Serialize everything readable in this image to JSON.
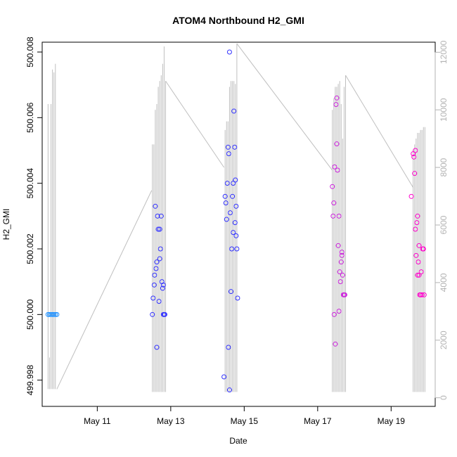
{
  "chart_data": {
    "type": "scatter",
    "title": "ATOM4 Northbound H2_GMI",
    "xlabel": "Date",
    "ylabel": "H2_GMI",
    "x_ticks": [
      "May 11",
      "May 13",
      "May 15",
      "May 17",
      "May 19"
    ],
    "x_tick_days": [
      11,
      13,
      15,
      17,
      19
    ],
    "xlim": [
      9.5,
      20.2
    ],
    "ylim": [
      499.9972,
      500.0083
    ],
    "y_ticks": [
      "499.998",
      "500.000",
      "500.002",
      "500.004",
      "500.006",
      "500.008"
    ],
    "y_tick_values": [
      499.998,
      500.0,
      500.002,
      500.004,
      500.006,
      500.008
    ],
    "y2lim": [
      -300,
      12350
    ],
    "y2_ticks": [
      "0",
      "2000",
      "4000",
      "6000",
      "8000",
      "10000",
      "12000"
    ],
    "y2_tick_values": [
      0,
      2000,
      4000,
      6000,
      8000,
      10000,
      12000
    ],
    "grid": false,
    "colors": {
      "points_early": "#1e90ff",
      "points_mid": "#3333ff",
      "points_late": "#cc22dd",
      "points_end": "#ff00cc",
      "secondary_line": "#bfbfbf",
      "secondary_axis": "#b3b3b3"
    },
    "series": [
      {
        "axis": "left",
        "marker": "open-circle",
        "points": [
          [
            9.66,
            500.0
          ],
          [
            9.7,
            500.0
          ],
          [
            9.74,
            500.0
          ],
          [
            9.78,
            500.0
          ],
          [
            9.82,
            500.0
          ],
          [
            9.86,
            500.0
          ],
          [
            9.9,
            500.0
          ],
          [
            12.5,
            500.0
          ],
          [
            12.52,
            500.0005
          ],
          [
            12.55,
            500.0009
          ],
          [
            12.56,
            500.0012
          ],
          [
            12.58,
            500.0033
          ],
          [
            12.6,
            500.0014
          ],
          [
            12.62,
            499.999
          ],
          [
            12.64,
            500.003
          ],
          [
            12.66,
            500.0026
          ],
          [
            12.68,
            500.0004
          ],
          [
            12.7,
            500.0026
          ],
          [
            12.72,
            500.002
          ],
          [
            12.74,
            500.003
          ],
          [
            12.76,
            500.001
          ],
          [
            12.78,
            500.0008
          ],
          [
            12.8,
            500.0
          ],
          [
            12.82,
            500.0
          ],
          [
            12.84,
            500.0
          ],
          [
            12.62,
            500.0016
          ],
          [
            12.7,
            500.0017
          ],
          [
            12.8,
            500.0009
          ],
          [
            14.45,
            499.9981
          ],
          [
            14.48,
            500.0036
          ],
          [
            14.5,
            500.0034
          ],
          [
            14.52,
            500.0029
          ],
          [
            14.54,
            500.004
          ],
          [
            14.56,
            500.0051
          ],
          [
            14.58,
            500.0049
          ],
          [
            14.6,
            500.008
          ],
          [
            14.62,
            500.0031
          ],
          [
            14.64,
            500.0007
          ],
          [
            14.66,
            500.002
          ],
          [
            14.68,
            500.0036
          ],
          [
            14.7,
            500.0025
          ],
          [
            14.72,
            500.0062
          ],
          [
            14.74,
            500.0051
          ],
          [
            14.76,
            500.0041
          ],
          [
            14.78,
            500.0033
          ],
          [
            14.8,
            500.002
          ],
          [
            14.82,
            500.0005
          ],
          [
            14.57,
            499.999
          ],
          [
            14.6,
            499.9977
          ],
          [
            14.7,
            500.004
          ],
          [
            14.75,
            500.0028
          ],
          [
            14.78,
            500.0024
          ],
          [
            17.4,
            500.0039
          ],
          [
            17.42,
            500.003
          ],
          [
            17.44,
            500.0034
          ],
          [
            17.46,
            500.0045
          ],
          [
            17.48,
            499.9991
          ],
          [
            17.5,
            500.0064
          ],
          [
            17.52,
            500.0052
          ],
          [
            17.54,
            500.0044
          ],
          [
            17.56,
            500.0021
          ],
          [
            17.58,
            500.003
          ],
          [
            17.6,
            500.0013
          ],
          [
            17.62,
            500.001
          ],
          [
            17.64,
            500.0016
          ],
          [
            17.66,
            500.0018
          ],
          [
            17.68,
            500.0012
          ],
          [
            17.7,
            500.0006
          ],
          [
            17.72,
            500.0006
          ],
          [
            17.74,
            500.0006
          ],
          [
            17.45,
            500.0
          ],
          [
            17.52,
            500.0066
          ],
          [
            17.58,
            500.0001
          ],
          [
            17.66,
            500.0019
          ],
          [
            19.55,
            500.0036
          ],
          [
            19.6,
            500.0049
          ],
          [
            19.62,
            500.0048
          ],
          [
            19.64,
            500.0043
          ],
          [
            19.66,
            500.0026
          ],
          [
            19.68,
            500.0018
          ],
          [
            19.7,
            500.0028
          ],
          [
            19.72,
            500.0012
          ],
          [
            19.74,
            500.0016
          ],
          [
            19.76,
            500.0012
          ],
          [
            19.78,
            500.0006
          ],
          [
            19.8,
            500.0006
          ],
          [
            19.82,
            500.0013
          ],
          [
            19.84,
            500.0006
          ],
          [
            19.86,
            500.002
          ],
          [
            19.88,
            500.002
          ],
          [
            19.9,
            500.0006
          ],
          [
            19.66,
            500.005
          ],
          [
            19.72,
            500.003
          ],
          [
            19.76,
            500.0021
          ]
        ]
      },
      {
        "axis": "right",
        "marker": "line",
        "segments": [
          {
            "spike_x": [
              9.66,
              9.7,
              9.74,
              9.78,
              9.82,
              9.86
            ],
            "spike_top": [
              10200,
              1400,
              10200,
              11400,
              11300,
              11600
            ],
            "baseline": 300
          },
          {
            "ramp": [
              [
                9.9,
                300
              ],
              [
                12.48,
                7200
              ]
            ]
          },
          {
            "spike_x": [
              12.5,
              12.54,
              12.58,
              12.62,
              12.66,
              12.7,
              12.74,
              12.78,
              12.82,
              12.86
            ],
            "spike_top": [
              8800,
              8800,
              10000,
              10200,
              10800,
              11000,
              11200,
              11600,
              12200,
              11000
            ],
            "baseline": 200
          },
          {
            "ramp": [
              [
                12.86,
                11000
              ],
              [
                14.45,
                8000
              ]
            ]
          },
          {
            "spike_x": [
              14.48,
              14.52,
              14.56,
              14.6,
              14.64,
              14.68,
              14.72,
              14.76,
              14.8
            ],
            "spike_top": [
              9300,
              9600,
              9600,
              10800,
              11000,
              11000,
              11000,
              10900,
              12300
            ],
            "baseline": 200
          },
          {
            "ramp": [
              [
                14.8,
                12300
              ],
              [
                17.4,
                7900
              ]
            ]
          },
          {
            "spike_x": [
              17.4,
              17.44,
              17.48,
              17.52,
              17.56,
              17.6,
              17.64,
              17.68,
              17.72,
              17.76
            ],
            "spike_top": [
              10000,
              10400,
              10800,
              10800,
              10900,
              11000,
              10200,
              9000,
              10800,
              11200
            ],
            "baseline": 200
          },
          {
            "ramp": [
              [
                17.76,
                11200
              ],
              [
                19.6,
                7300
              ]
            ]
          },
          {
            "spike_x": [
              19.6,
              19.64,
              19.68,
              19.72,
              19.76,
              19.8,
              19.84,
              19.88,
              19.92
            ],
            "spike_top": [
              8600,
              8800,
              9000,
              9200,
              9200,
              9300,
              9300,
              9400,
              9400
            ],
            "baseline": 200
          }
        ]
      }
    ]
  }
}
